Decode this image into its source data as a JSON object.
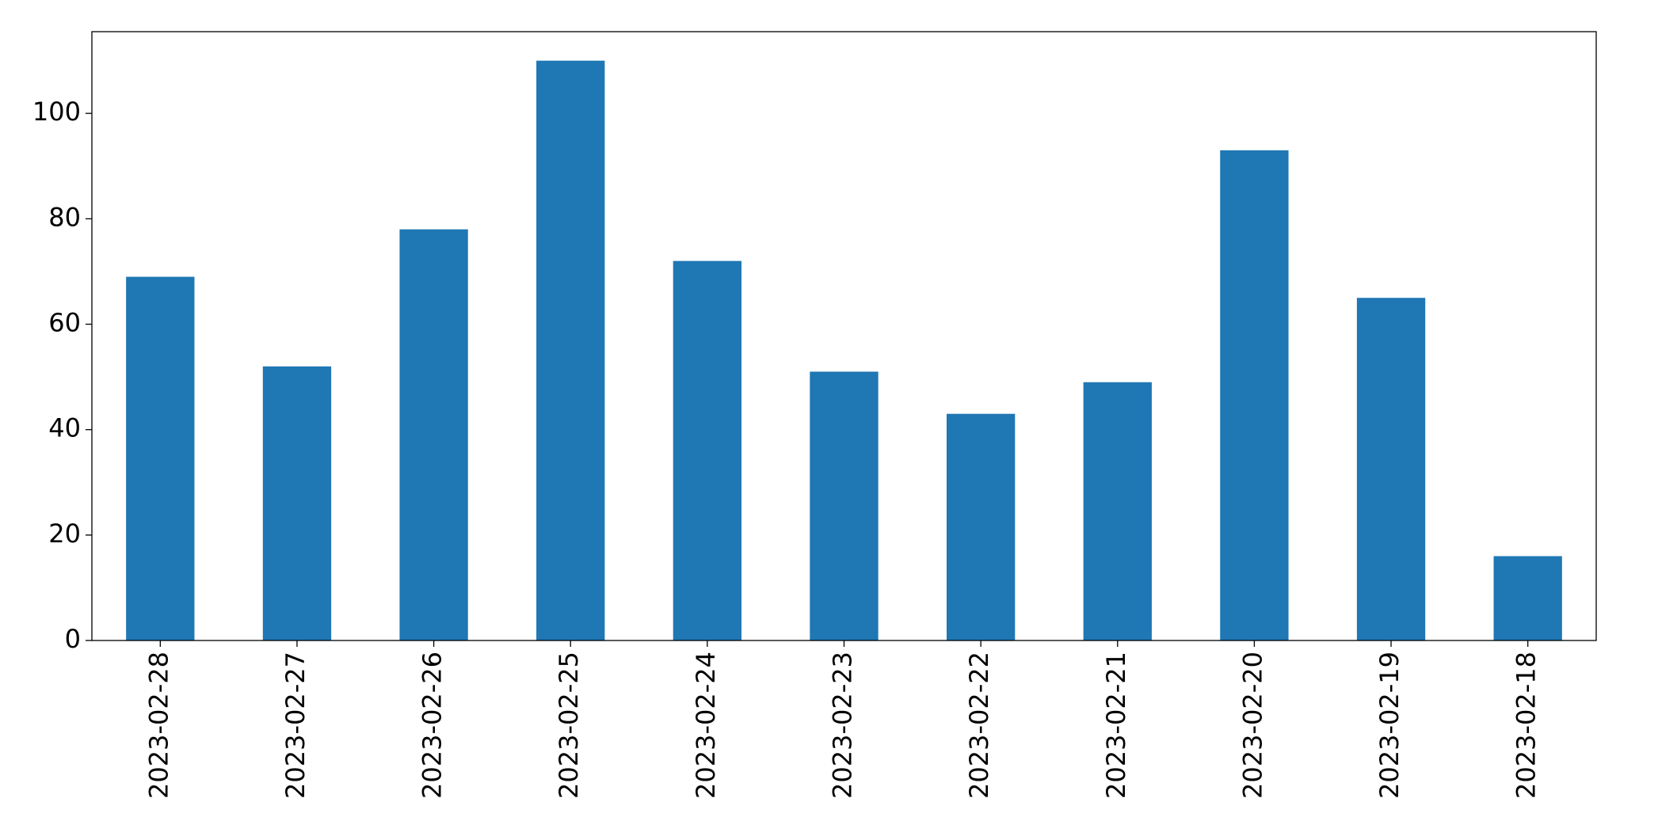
{
  "chart_data": {
    "type": "bar",
    "categories": [
      "2023-02-28",
      "2023-02-27",
      "2023-02-26",
      "2023-02-25",
      "2023-02-24",
      "2023-02-23",
      "2023-02-22",
      "2023-02-21",
      "2023-02-20",
      "2023-02-19",
      "2023-02-18"
    ],
    "values": [
      69,
      52,
      78,
      110,
      72,
      51,
      43,
      49,
      93,
      65,
      16
    ],
    "color": "#1f77b4",
    "ylim": [
      0,
      115.5
    ],
    "yticks": [
      0,
      20,
      40,
      60,
      80,
      100
    ],
    "grid": false
  }
}
